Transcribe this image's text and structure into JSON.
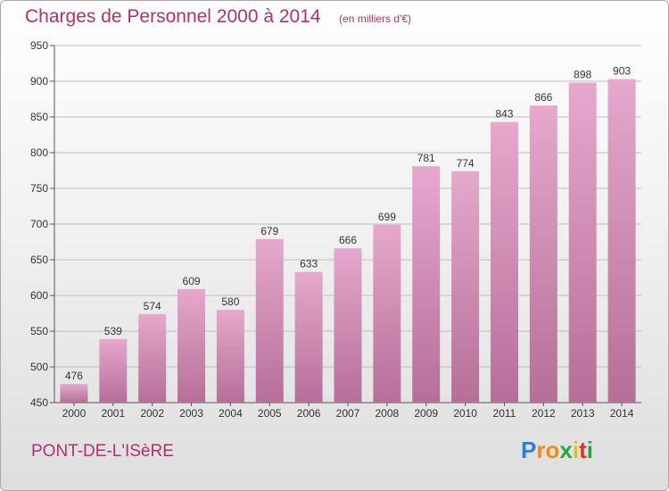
{
  "title": "Charges de Personnel 2000 à 2014",
  "subtitle": "(en milliers d'€)",
  "commune": "PONT-DE-L'ISèRE",
  "brand": {
    "letters": [
      "P",
      "r",
      "o",
      "x",
      "i",
      "t",
      "i"
    ],
    "colors": [
      "#2f7fd6",
      "#f08a1c",
      "#f08a1c",
      "#2aa63c",
      "#d8c51c",
      "#e2302b",
      "#2aa63c"
    ]
  },
  "colors": {
    "accent": "#b0306f",
    "bar_top": "#e6a8cd",
    "bar_bottom": "#b56f98",
    "grid": "#bdbdbd"
  },
  "chart_data": {
    "type": "bar",
    "categories": [
      "2000",
      "2001",
      "2002",
      "2003",
      "2004",
      "2005",
      "2006",
      "2007",
      "2008",
      "2009",
      "2010",
      "2011",
      "2012",
      "2013",
      "2014"
    ],
    "values": [
      476,
      539,
      574,
      609,
      580,
      679,
      633,
      666,
      699,
      781,
      774,
      843,
      866,
      898,
      903
    ],
    "title": "Charges de Personnel 2000 à 2014",
    "subtitle": "(en milliers d'€)",
    "xlabel": "",
    "ylabel": "",
    "ylim": [
      450,
      950
    ],
    "yticks": [
      450,
      500,
      550,
      600,
      650,
      700,
      750,
      800,
      850,
      900,
      950
    ],
    "grid": true,
    "data_labels": true
  }
}
